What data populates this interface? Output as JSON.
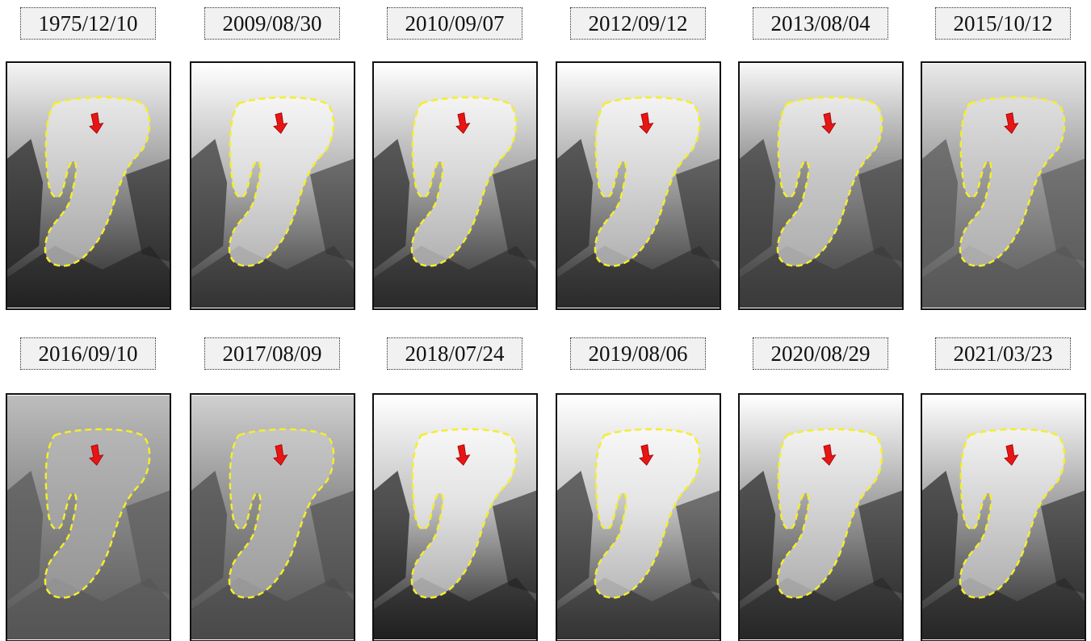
{
  "dates": [
    "1975/12/10",
    "2009/08/30",
    "2010/09/07",
    "2012/09/12",
    "2013/08/04",
    "2015/10/12",
    "2016/09/10",
    "2017/08/09",
    "2018/07/24",
    "2019/08/06",
    "2020/08/29",
    "2021/03/23"
  ]
}
